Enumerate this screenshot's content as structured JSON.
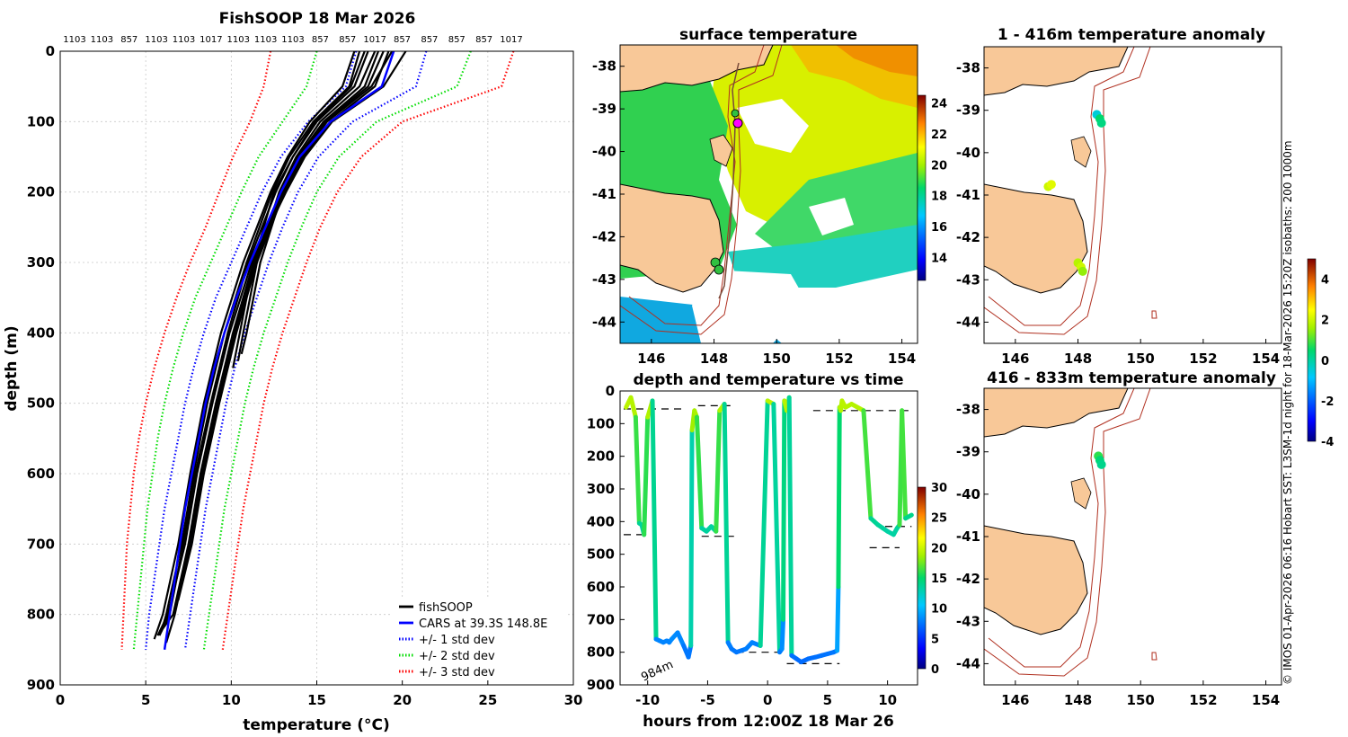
{
  "colors": {
    "fishsoop": "#000000",
    "cars": "#0000ff",
    "std1": "#0000ff",
    "std2": "#00dd00",
    "std3": "#ff0000",
    "land": "#f8c898",
    "coast": "#000000",
    "isobath": "#b03020",
    "track": "#b03020",
    "grid": "#c8c8c8"
  },
  "chart_data": [
    {
      "type": "line",
      "id": "profile",
      "title": "FishSOOP 18 Mar 2026",
      "xlabel": "temperature (°C)",
      "ylabel": "depth (m)",
      "xlim": [
        0,
        30
      ],
      "ylim": [
        0,
        900
      ],
      "y_reversed": true,
      "xticks": [
        0,
        5,
        10,
        15,
        20,
        25,
        30
      ],
      "yticks": [
        0,
        100,
        200,
        300,
        400,
        500,
        600,
        700,
        800,
        900
      ],
      "grid": true,
      "top_labels": [
        "1103",
        "1103",
        "857",
        "1103",
        "1103",
        "1017",
        "1103",
        "1103",
        "1103",
        "857",
        "857",
        "1017",
        "857",
        "857",
        "857",
        "857",
        "1017"
      ],
      "legend": {
        "placement": "bottom-right",
        "entries": [
          {
            "label": "fishSOOP",
            "style": "solid",
            "color": "#000000"
          },
          {
            "label": "CARS at 39.3S 148.8E",
            "style": "solid",
            "color": "#0000ff"
          },
          {
            "label": "+/- 1 std dev",
            "style": "dotted",
            "color": "#0000ff"
          },
          {
            "label": "+/- 2 std dev",
            "style": "dotted",
            "color": "#00dd00"
          },
          {
            "label": "+/- 3 std dev",
            "style": "dotted",
            "color": "#ff0000"
          }
        ]
      },
      "cars_profile": {
        "depth": [
          0,
          50,
          100,
          150,
          200,
          250,
          300,
          350,
          400,
          450,
          500,
          550,
          600,
          650,
          700,
          750,
          800,
          850
        ],
        "temp": [
          19.5,
          18.8,
          15.8,
          14.0,
          12.9,
          12.0,
          11.1,
          10.3,
          9.6,
          9.0,
          8.5,
          8.1,
          7.7,
          7.3,
          7.0,
          6.7,
          6.4,
          6.1
        ]
      },
      "std_bands": [
        {
          "name": "+/- 1 std dev",
          "color": "#0000ff",
          "left": [
            17.3,
            16.7,
            14.5,
            12.9,
            11.8,
            10.9,
            10.0,
            9.1,
            8.4,
            7.8,
            7.3,
            6.9,
            6.5,
            6.1,
            5.8,
            5.5,
            5.2,
            5.0
          ],
          "right": [
            21.4,
            20.8,
            17.1,
            15.1,
            13.9,
            13.0,
            12.2,
            11.5,
            10.8,
            10.2,
            9.7,
            9.3,
            8.9,
            8.5,
            8.2,
            7.9,
            7.6,
            7.3
          ]
        },
        {
          "name": "+/- 2 std dev",
          "color": "#00dd00",
          "left": [
            15.0,
            14.4,
            13.0,
            11.6,
            10.6,
            9.7,
            8.8,
            7.9,
            7.2,
            6.6,
            6.1,
            5.7,
            5.4,
            5.1,
            4.9,
            4.7,
            4.5,
            4.3
          ],
          "right": [
            24.0,
            23.2,
            18.5,
            16.3,
            15.0,
            14.1,
            13.3,
            12.6,
            11.9,
            11.3,
            10.8,
            10.4,
            10.0,
            9.6,
            9.3,
            9.0,
            8.7,
            8.4
          ]
        },
        {
          "name": "+/- 3 std dev",
          "color": "#ff0000",
          "left": [
            12.3,
            11.9,
            11.1,
            10.1,
            9.3,
            8.5,
            7.6,
            6.8,
            6.1,
            5.5,
            5.0,
            4.6,
            4.3,
            4.1,
            3.9,
            3.8,
            3.7,
            3.6
          ],
          "right": [
            26.5,
            25.8,
            20.0,
            17.6,
            16.2,
            15.2,
            14.4,
            13.7,
            13.0,
            12.4,
            11.9,
            11.5,
            11.1,
            10.7,
            10.4,
            10.1,
            9.8,
            9.5
          ]
        }
      ],
      "fishsoop_profiles": [
        {
          "depth": [
            0,
            50,
            100,
            150,
            200,
            300,
            400,
            500,
            600,
            700,
            800,
            835
          ],
          "temp": [
            17.2,
            16.5,
            14.6,
            13.3,
            12.3,
            10.7,
            9.4,
            8.4,
            7.6,
            6.9,
            6.0,
            5.5
          ]
        },
        {
          "depth": [
            0,
            50,
            100,
            150,
            200,
            300,
            400,
            500,
            600,
            700,
            800,
            830
          ],
          "temp": [
            18.0,
            17.2,
            15.0,
            13.6,
            12.6,
            11.0,
            9.8,
            8.8,
            7.9,
            7.2,
            6.4,
            5.8
          ]
        },
        {
          "depth": [
            0,
            50,
            100,
            150,
            200,
            300,
            400,
            500,
            600,
            700,
            800,
            820
          ],
          "temp": [
            18.6,
            17.8,
            15.4,
            13.9,
            12.9,
            11.3,
            10.1,
            9.1,
            8.2,
            7.5,
            6.6,
            6.0
          ]
        },
        {
          "depth": [
            0,
            50,
            100,
            150,
            200,
            300,
            400,
            500,
            600,
            700,
            780
          ],
          "temp": [
            19.2,
            18.4,
            15.8,
            14.2,
            13.1,
            11.5,
            10.3,
            9.3,
            8.4,
            7.7,
            6.9
          ]
        },
        {
          "depth": [
            0,
            50,
            100,
            150,
            200,
            300,
            400,
            450
          ],
          "temp": [
            17.8,
            17.0,
            14.9,
            13.6,
            12.5,
            11.3,
            10.5,
            10.1
          ]
        },
        {
          "depth": [
            0,
            50,
            100,
            150,
            200,
            300,
            400,
            440
          ],
          "temp": [
            18.4,
            17.5,
            15.2,
            13.8,
            12.8,
            11.5,
            10.7,
            10.4
          ]
        },
        {
          "depth": [
            0,
            50,
            100,
            150,
            200,
            300,
            400,
            430
          ],
          "temp": [
            19.4,
            18.2,
            15.6,
            14.1,
            13.0,
            11.7,
            10.9,
            10.6
          ]
        },
        {
          "depth": [
            0,
            50,
            100,
            150,
            200,
            300,
            400,
            500,
            600,
            700,
            800,
            830
          ],
          "temp": [
            20.2,
            18.9,
            15.9,
            14.3,
            13.2,
            11.2,
            9.9,
            8.9,
            8.0,
            7.3,
            6.3,
            5.7
          ]
        },
        {
          "depth": [
            0,
            50,
            100,
            150,
            200,
            300,
            400,
            500,
            600,
            700,
            800,
            825
          ],
          "temp": [
            17.5,
            16.9,
            14.8,
            13.4,
            12.4,
            10.9,
            9.6,
            8.6,
            7.8,
            7.1,
            6.2,
            5.9
          ]
        },
        {
          "depth": [
            0,
            50,
            100,
            150,
            200,
            300,
            400,
            500,
            600,
            700,
            800,
            840
          ],
          "temp": [
            18.9,
            18.0,
            15.5,
            14.0,
            13.0,
            11.4,
            10.2,
            9.2,
            8.3,
            7.6,
            6.7,
            6.2
          ]
        }
      ]
    },
    {
      "type": "heatmap",
      "id": "sst_map",
      "title": "surface temperature",
      "xlim": [
        145,
        154.5
      ],
      "ylim": [
        -44.5,
        -37.5
      ],
      "xticks": [
        146,
        148,
        150,
        152,
        154
      ],
      "yticks": [
        -38,
        -39,
        -40,
        -41,
        -42,
        -43,
        -44
      ],
      "colorbar": {
        "min": 12.5,
        "max": 24.5,
        "ticks": [
          14,
          16,
          18,
          20,
          22,
          24
        ]
      }
    },
    {
      "type": "scatter",
      "id": "depth_time",
      "title": "depth and temperature vs time",
      "xlabel": "hours from 12:00Z 18 Mar 26",
      "ylabel": "",
      "xlim": [
        -12.3,
        12.5
      ],
      "ylim": [
        0,
        900
      ],
      "y_reversed": true,
      "xticks": [
        -10,
        -5,
        0,
        5,
        10
      ],
      "yticks": [
        0,
        100,
        200,
        300,
        400,
        500,
        600,
        700,
        800,
        900
      ],
      "colorbar": {
        "min": 0,
        "max": 30,
        "ticks": [
          0,
          5,
          10,
          15,
          20,
          25,
          30
        ]
      },
      "annotation": "984m",
      "depth_trace": {
        "t": [
          -11.8,
          -11.4,
          -11.0,
          -10.7,
          -10.5,
          -10.3,
          -10.0,
          -9.6,
          -9.3,
          -9.0,
          -8.7,
          -8.4,
          -8.2,
          -8.0,
          -7.5,
          -7.0,
          -6.6,
          -6.4,
          -6.3,
          -6.1,
          -5.9,
          -5.5,
          -5.1,
          -4.7,
          -4.3,
          -4.0,
          -3.6,
          -3.3,
          -3.0,
          -2.6,
          -2.2,
          -1.8,
          -1.3,
          -0.6,
          0.0,
          0.5,
          1.0,
          1.2,
          1.3,
          1.4,
          1.6,
          1.8,
          2.0,
          2.4,
          2.8,
          3.4,
          4.0,
          4.5,
          5.0,
          5.5,
          5.8,
          5.9,
          6.0,
          6.1,
          6.2,
          6.5,
          7.0,
          8.0,
          8.6,
          8.9,
          9.2,
          9.6,
          10.0,
          10.5,
          10.8,
          11.0,
          11.2,
          11.5,
          12.0
        ],
        "d": [
          50,
          20,
          80,
          405,
          410,
          440,
          80,
          30,
          760,
          765,
          770,
          765,
          770,
          760,
          740,
          780,
          815,
          780,
          120,
          60,
          80,
          420,
          430,
          415,
          430,
          60,
          40,
          770,
          790,
          800,
          795,
          790,
          770,
          780,
          30,
          40,
          800,
          790,
          700,
          30,
          60,
          20,
          810,
          820,
          830,
          820,
          815,
          810,
          805,
          800,
          795,
          600,
          50,
          60,
          30,
          50,
          40,
          60,
          390,
          400,
          410,
          420,
          430,
          440,
          420,
          410,
          60,
          390,
          380
        ]
      },
      "reference_segments": [
        {
          "t0": -12.0,
          "t1": -6.8,
          "d": 55
        },
        {
          "t0": -12.0,
          "t1": -10.5,
          "d": 440
        },
        {
          "t0": -5.8,
          "t1": -2.8,
          "d": 45
        },
        {
          "t0": -5.5,
          "t1": -2.8,
          "d": 445
        },
        {
          "t0": -2.6,
          "t1": 1.2,
          "d": 800
        },
        {
          "t0": 1.6,
          "t1": 6.0,
          "d": 835
        },
        {
          "t0": 3.8,
          "t1": 12.0,
          "d": 60
        },
        {
          "t0": 8.5,
          "t1": 11.0,
          "d": 480
        },
        {
          "t0": 9.8,
          "t1": 12.0,
          "d": 415
        }
      ]
    },
    {
      "type": "heatmap",
      "id": "anom_upper",
      "title": "1 - 416m temperature anomaly",
      "xlim": [
        145,
        154.5
      ],
      "ylim": [
        -44.5,
        -37.5
      ],
      "xticks": [
        146,
        148,
        150,
        152,
        154
      ],
      "yticks": [
        -38,
        -39,
        -40,
        -41,
        -42,
        -43,
        -44
      ],
      "points": [
        {
          "lon": 148.6,
          "lat": -39.1,
          "anom": -0.5
        },
        {
          "lon": 148.7,
          "lat": -39.2,
          "anom": 0.5
        },
        {
          "lon": 148.75,
          "lat": -39.3,
          "anom": 0.3
        },
        {
          "lon": 147.05,
          "lat": -40.8,
          "anom": 2.0
        },
        {
          "lon": 147.15,
          "lat": -40.75,
          "anom": 2.2
        },
        {
          "lon": 148.0,
          "lat": -42.6,
          "anom": 1.8
        },
        {
          "lon": 148.1,
          "lat": -42.7,
          "anom": 2.0
        },
        {
          "lon": 148.15,
          "lat": -42.8,
          "anom": 1.5
        }
      ]
    },
    {
      "type": "heatmap",
      "id": "anom_lower",
      "title": "416 - 833m temperature anomaly",
      "xlim": [
        145,
        154.5
      ],
      "ylim": [
        -44.5,
        -37.5
      ],
      "xticks": [
        146,
        148,
        150,
        152,
        154
      ],
      "yticks": [
        -38,
        -39,
        -40,
        -41,
        -42,
        -43,
        -44
      ],
      "points": [
        {
          "lon": 148.65,
          "lat": -39.1,
          "anom": 0.8
        },
        {
          "lon": 148.7,
          "lat": -39.2,
          "anom": 0.4
        },
        {
          "lon": 148.75,
          "lat": -39.3,
          "anom": 0.2
        }
      ]
    },
    {
      "type": "heatmap",
      "id": "anomaly_colorbar",
      "colorbar": {
        "min": -4,
        "max": 5,
        "ticks": [
          -4,
          -2,
          0,
          2,
          4
        ]
      }
    }
  ],
  "side_caption": "© IMOS 01-Apr-2026 06:16 Hobart SST: L3SM-1d night for 18-Mar-2026 15:20Z isobaths: 200  1000m"
}
